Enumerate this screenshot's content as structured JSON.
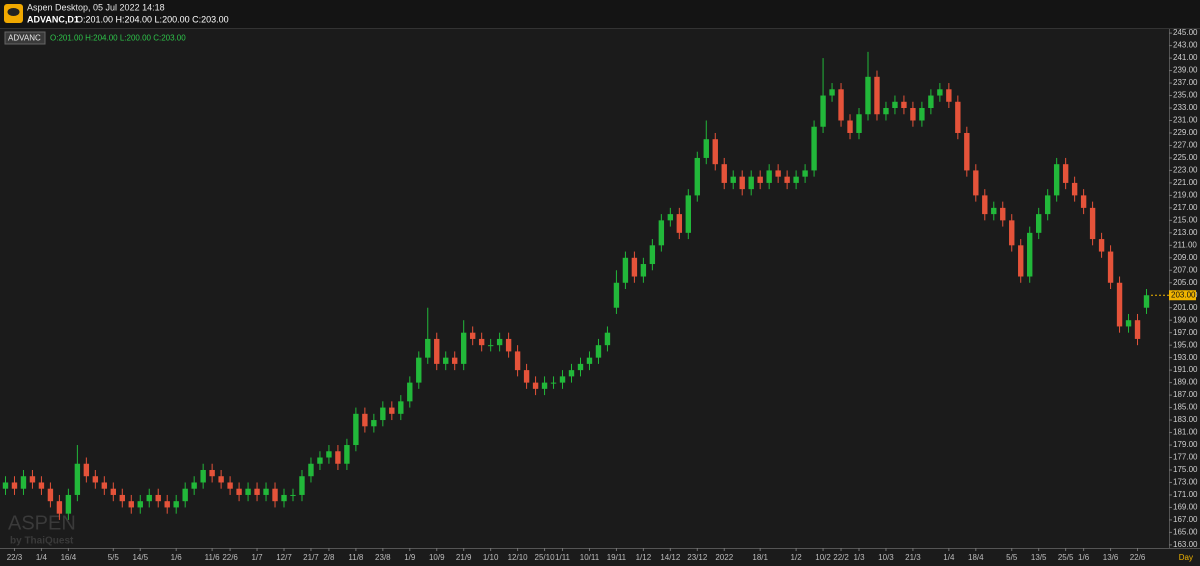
{
  "header": {
    "app": "Aspen Desktop, 05 Jul 2022 14:18",
    "symbol": "ADVANC,D1",
    "ohlc": "O:201.00 H:204.00 L:200.00 C:203.00"
  },
  "legend": {
    "symbol": "ADVANC"
  },
  "watermark": {
    "brand": "ASPEN",
    "by": "by ThaiQuest"
  },
  "timeframe": "Day",
  "chart_data": {
    "type": "candlestick",
    "up_color": "#22b83a",
    "down_color": "#e5533a",
    "categories": [
      null,
      "22/3",
      null,
      null,
      "1/4",
      null,
      null,
      "16/4",
      null,
      null,
      null,
      null,
      "5/5",
      null,
      null,
      "14/5",
      null,
      null,
      null,
      "1/6",
      null,
      null,
      null,
      "11/6",
      null,
      "22/6",
      null,
      null,
      "1/7",
      null,
      null,
      "12/7",
      null,
      null,
      "21/7",
      null,
      "2/8",
      null,
      null,
      "11/8",
      null,
      null,
      "23/8",
      null,
      null,
      "1/9",
      null,
      null,
      "10/9",
      null,
      null,
      "21/9",
      null,
      null,
      "1/10",
      null,
      null,
      "12/10",
      null,
      null,
      "25/10",
      null,
      "1/11",
      null,
      null,
      "10/11",
      null,
      null,
      "19/11",
      null,
      null,
      "1/12",
      null,
      null,
      "14/12",
      null,
      null,
      "23/12",
      null,
      null,
      "2022",
      null,
      null,
      null,
      "18/1",
      null,
      null,
      null,
      "1/2",
      null,
      null,
      "10/2",
      null,
      "22/2",
      null,
      "1/3",
      null,
      null,
      "10/3",
      null,
      null,
      "21/3",
      null,
      null,
      null,
      "1/4",
      null,
      null,
      "18/4",
      null,
      null,
      null,
      "5/5",
      null,
      null,
      "13/5",
      null,
      null,
      "25/5",
      null,
      "1/6",
      null,
      null,
      "13/6",
      null,
      null,
      "22/6",
      null
    ],
    "open": [
      172,
      173,
      172,
      174,
      173,
      172,
      170,
      168,
      171,
      176,
      174,
      173,
      172,
      171,
      170,
      169,
      170,
      171,
      170,
      169,
      170,
      172,
      173,
      175,
      174,
      173,
      172,
      171,
      172,
      171,
      172,
      170,
      171,
      171,
      174,
      176,
      177,
      178,
      176,
      179,
      184,
      182,
      183,
      185,
      184,
      186,
      189,
      193,
      196,
      192,
      193,
      192,
      197,
      196,
      195,
      195,
      196,
      194,
      191,
      189,
      188,
      189,
      189,
      190,
      191,
      192,
      193,
      195,
      201,
      205,
      209,
      206,
      208,
      211,
      215,
      216,
      213,
      219,
      225,
      228,
      224,
      221,
      222,
      220,
      222,
      221,
      223,
      222,
      221,
      222,
      223,
      230,
      235,
      236,
      231,
      229,
      232,
      238,
      232,
      233,
      234,
      233,
      231,
      233,
      235,
      236,
      234,
      229,
      223,
      219,
      216,
      217,
      215,
      211,
      206,
      213,
      216,
      219,
      224,
      221,
      219,
      217,
      212,
      210,
      205,
      198,
      199,
      201
    ],
    "high": [
      174,
      174,
      175,
      175,
      174,
      173,
      171,
      172,
      179,
      177,
      175,
      174,
      173,
      172,
      171,
      171,
      172,
      172,
      171,
      171,
      173,
      174,
      176,
      176,
      175,
      174,
      173,
      173,
      173,
      173,
      173,
      172,
      172,
      175,
      177,
      178,
      179,
      179,
      180,
      185,
      185,
      184,
      186,
      186,
      187,
      190,
      194,
      201,
      197,
      194,
      194,
      199,
      198,
      197,
      196,
      197,
      197,
      195,
      192,
      190,
      190,
      190,
      191,
      192,
      193,
      194,
      196,
      198,
      207,
      210,
      210,
      209,
      212,
      216,
      217,
      217,
      220,
      226,
      231,
      229,
      225,
      223,
      223,
      223,
      223,
      224,
      224,
      223,
      223,
      224,
      231,
      241,
      237,
      237,
      232,
      233,
      242,
      239,
      234,
      235,
      235,
      234,
      234,
      236,
      237,
      237,
      235,
      230,
      224,
      220,
      218,
      218,
      216,
      212,
      214,
      217,
      220,
      225,
      225,
      222,
      220,
      218,
      213,
      211,
      206,
      200,
      200,
      204
    ],
    "low": [
      171,
      171,
      171,
      172,
      171,
      169,
      167,
      167,
      170,
      173,
      172,
      171,
      170,
      169,
      168,
      168,
      169,
      169,
      168,
      168,
      169,
      171,
      172,
      173,
      172,
      171,
      170,
      170,
      170,
      170,
      169,
      169,
      170,
      170,
      173,
      175,
      176,
      175,
      175,
      178,
      181,
      181,
      182,
      183,
      183,
      185,
      188,
      192,
      191,
      191,
      191,
      191,
      195,
      194,
      194,
      194,
      193,
      190,
      188,
      187,
      187,
      188,
      188,
      189,
      190,
      191,
      192,
      194,
      200,
      204,
      205,
      205,
      207,
      210,
      214,
      212,
      212,
      218,
      224,
      223,
      220,
      220,
      219,
      219,
      220,
      220,
      221,
      220,
      220,
      221,
      222,
      229,
      234,
      230,
      228,
      228,
      231,
      231,
      231,
      232,
      232,
      230,
      230,
      232,
      234,
      233,
      228,
      222,
      218,
      215,
      215,
      214,
      210,
      205,
      205,
      212,
      215,
      218,
      220,
      218,
      216,
      211,
      209,
      204,
      197,
      197,
      195,
      200
    ],
    "close": [
      173,
      172,
      174,
      173,
      172,
      170,
      168,
      171,
      176,
      174,
      173,
      172,
      171,
      170,
      169,
      170,
      171,
      170,
      169,
      170,
      172,
      173,
      175,
      174,
      173,
      172,
      171,
      172,
      171,
      172,
      170,
      171,
      171,
      174,
      176,
      177,
      178,
      176,
      179,
      184,
      182,
      183,
      185,
      184,
      186,
      189,
      193,
      196,
      192,
      193,
      192,
      197,
      196,
      195,
      195,
      196,
      194,
      191,
      189,
      188,
      189,
      189,
      190,
      191,
      192,
      193,
      195,
      197,
      205,
      209,
      206,
      208,
      211,
      215,
      216,
      213,
      219,
      225,
      228,
      224,
      221,
      222,
      220,
      222,
      221,
      223,
      222,
      221,
      222,
      223,
      230,
      235,
      236,
      231,
      229,
      232,
      238,
      232,
      233,
      234,
      233,
      231,
      233,
      235,
      236,
      234,
      229,
      223,
      219,
      216,
      217,
      215,
      211,
      206,
      213,
      216,
      219,
      224,
      221,
      219,
      217,
      212,
      210,
      205,
      198,
      199,
      196,
      203
    ],
    "last_price": {
      "value": 203,
      "label": "203.00"
    },
    "ylim": [
      162.5,
      245.5
    ],
    "yticks": [
      {
        "value": 163,
        "label": "163.00"
      },
      {
        "value": 165,
        "label": "165.00"
      },
      {
        "value": 167,
        "label": "167.00"
      },
      {
        "value": 169,
        "label": "169.00"
      },
      {
        "value": 171,
        "label": "171.00"
      },
      {
        "value": 173,
        "label": "173.00"
      },
      {
        "value": 175,
        "label": "175.00"
      },
      {
        "value": 177,
        "label": "177.00"
      },
      {
        "value": 179,
        "label": "179.00"
      },
      {
        "value": 181,
        "label": "181.00"
      },
      {
        "value": 183,
        "label": "183.00"
      },
      {
        "value": 185,
        "label": "185.00"
      },
      {
        "value": 187,
        "label": "187.00"
      },
      {
        "value": 189,
        "label": "189.00"
      },
      {
        "value": 191,
        "label": "191.00"
      },
      {
        "value": 193,
        "label": "193.00"
      },
      {
        "value": 195,
        "label": "195.00"
      },
      {
        "value": 197,
        "label": "197.00"
      },
      {
        "value": 199,
        "label": "199.00"
      },
      {
        "value": 201,
        "label": "201.00"
      },
      {
        "value": 203,
        "label": "203.00"
      },
      {
        "value": 205,
        "label": "205.00"
      },
      {
        "value": 207,
        "label": "207.00"
      },
      {
        "value": 209,
        "label": "209.00"
      },
      {
        "value": 211,
        "label": "211.00"
      },
      {
        "value": 213,
        "label": "213.00"
      },
      {
        "value": 215,
        "label": "215.00"
      },
      {
        "value": 217,
        "label": "217.00"
      },
      {
        "value": 219,
        "label": "219.00"
      },
      {
        "value": 221,
        "label": "221.00"
      },
      {
        "value": 223,
        "label": "223.00"
      },
      {
        "value": 225,
        "label": "225.00"
      },
      {
        "value": 227,
        "label": "227.00"
      },
      {
        "value": 229,
        "label": "229.00"
      },
      {
        "value": 231,
        "label": "231.00"
      },
      {
        "value": 233,
        "label": "233.00"
      },
      {
        "value": 235,
        "label": "235.00"
      },
      {
        "value": 237,
        "label": "237.00"
      },
      {
        "value": 239,
        "label": "239.00"
      },
      {
        "value": 241,
        "label": "241.00"
      },
      {
        "value": 243,
        "label": "243.00"
      },
      {
        "value": 245,
        "label": "245.00"
      }
    ],
    "grid": false
  }
}
